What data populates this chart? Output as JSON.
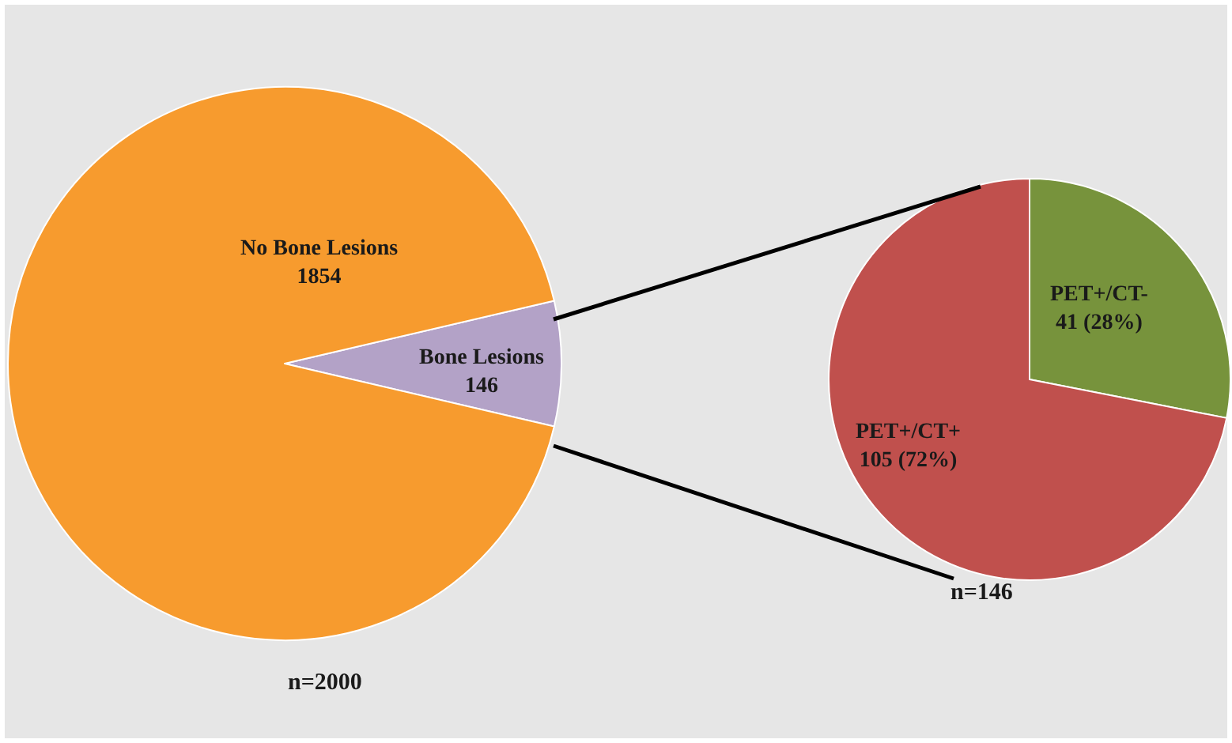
{
  "chart_data": [
    {
      "type": "pie",
      "categories": [
        "Bone Lesions",
        "No Bone Lesions"
      ],
      "values": [
        146,
        1854
      ],
      "colors": [
        "#b3a2c7",
        "#f79b2e"
      ],
      "data_labels": true,
      "annotations": [
        "n=2000"
      ]
    },
    {
      "type": "pie",
      "categories": [
        "PET+/CT-",
        "PET+/CT+"
      ],
      "values": [
        41,
        105
      ],
      "colors": [
        "#77933c",
        "#c0504d"
      ],
      "value_labels": [
        "41 (28%)",
        "105 (72%)"
      ],
      "annotations": [
        "n=146"
      ]
    }
  ]
}
